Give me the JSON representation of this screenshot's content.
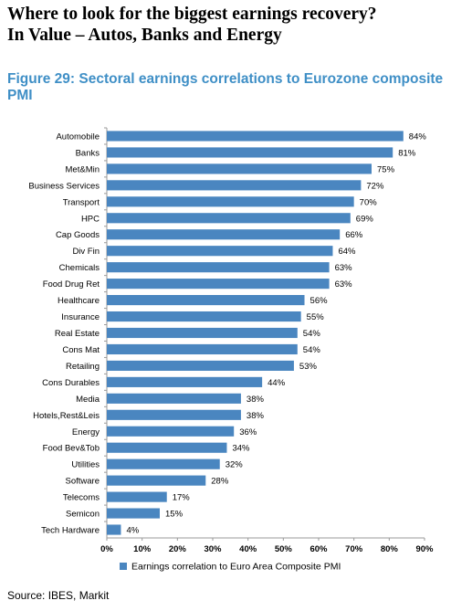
{
  "headline": {
    "line1": "Where to look for the biggest earnings recovery?",
    "line2": "In Value – Autos, Banks and Energy"
  },
  "figure_title": "Figure 29: Sectoral earnings correlations to Eurozone composite PMI",
  "source": "Source: IBES, Markit",
  "colors": {
    "bar": "#4a86c0",
    "title": "#3f8fc6",
    "axis": "#9a9a9a"
  },
  "chart_data": {
    "type": "bar",
    "orientation": "horizontal",
    "categories": [
      "Automobile",
      "Banks",
      "Met&Min",
      "Business Services",
      "Transport",
      "HPC",
      "Cap Goods",
      "Div Fin",
      "Chemicals",
      "Food Drug Ret",
      "Healthcare",
      "Insurance",
      "Real Estate",
      "Cons Mat",
      "Retailing",
      "Cons Durables",
      "Media",
      "Hotels,Rest&Leis",
      "Energy",
      "Food Bev&Tob",
      "Utilities",
      "Software",
      "Telecoms",
      "Semicon",
      "Tech Hardware"
    ],
    "series": [
      {
        "name": "Earnings correlation to Euro Area Composite PMI",
        "values": [
          84,
          81,
          75,
          72,
          70,
          69,
          66,
          64,
          63,
          63,
          56,
          55,
          54,
          54,
          53,
          44,
          38,
          38,
          36,
          34,
          32,
          28,
          17,
          15,
          4
        ],
        "labels": [
          "84%",
          "81%",
          "75%",
          "72%",
          "70%",
          "69%",
          "66%",
          "64%",
          "63%",
          "63%",
          "56%",
          "55%",
          "54%",
          "54%",
          "53%",
          "44%",
          "38%",
          "38%",
          "36%",
          "34%",
          "32%",
          "28%",
          "17%",
          "15%",
          "4%"
        ]
      }
    ],
    "xlim": [
      0,
      90
    ],
    "xticks": [
      "0%",
      "10%",
      "20%",
      "30%",
      "40%",
      "50%",
      "60%",
      "70%",
      "80%",
      "90%"
    ],
    "legend": "bottom"
  }
}
